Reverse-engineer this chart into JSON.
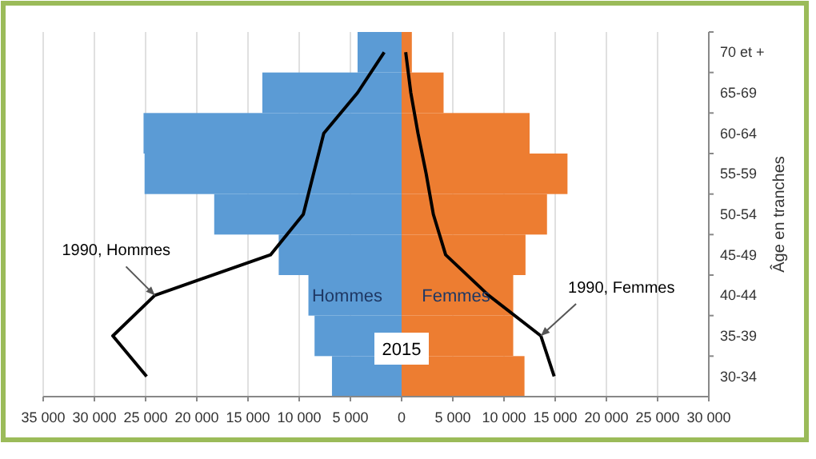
{
  "chart_data": {
    "type": "bar",
    "orientation": "horizontal",
    "stacked": true,
    "ylabel": "Âge en tranches",
    "categories": [
      "70 et +",
      "65-69",
      "60-64",
      "55-59",
      "50-54",
      "45-49",
      "40-44",
      "35-39",
      "30-34"
    ],
    "series": [
      {
        "name": "Hommes",
        "color": "#5b9bd5",
        "values": [
          -4300,
          -13600,
          -25200,
          -25100,
          -18300,
          -12000,
          -9100,
          -8500,
          -6800
        ]
      },
      {
        "name": "Femmes",
        "color": "#ed7d31",
        "values": [
          1000,
          4100,
          12500,
          16200,
          14200,
          12100,
          10900,
          10900,
          12000
        ]
      },
      {
        "type": "line",
        "color": "#000000",
        "values": [
          -1700,
          -4300,
          -7600,
          -8600,
          -9600,
          -12800,
          -24100,
          -28200,
          -24900
        ]
      },
      {
        "type": "line",
        "color": "#000000",
        "values": [
          400,
          900,
          1600,
          2400,
          3100,
          4300,
          8500,
          13600,
          14900
        ]
      }
    ],
    "xlim": [
      -35000,
      30000
    ],
    "xticks": [
      {
        "value": -35000,
        "label": "35 000"
      },
      {
        "value": -30000,
        "label": "30 000"
      },
      {
        "value": -25000,
        "label": "25 000"
      },
      {
        "value": -20000,
        "label": "20 000"
      },
      {
        "value": -15000,
        "label": "15 000"
      },
      {
        "value": -10000,
        "label": "10 000"
      },
      {
        "value": -5000,
        "label": "5 000"
      },
      0,
      {
        "value": 5000,
        "label": "5 000"
      },
      {
        "value": 10000,
        "label": "10 000"
      },
      {
        "value": 15000,
        "label": "15 000"
      },
      {
        "value": 20000,
        "label": "20 000"
      },
      {
        "value": 25000,
        "label": "25 000"
      },
      {
        "value": 30000,
        "label": "30 000"
      }
    ],
    "annotations": [
      {
        "text": "1990, Hommes",
        "x": -24100,
        "y": "40-44"
      },
      {
        "text": "1990, Femmes",
        "x": 13600,
        "y": "35-39"
      },
      "2015"
    ],
    "grid": "x"
  }
}
